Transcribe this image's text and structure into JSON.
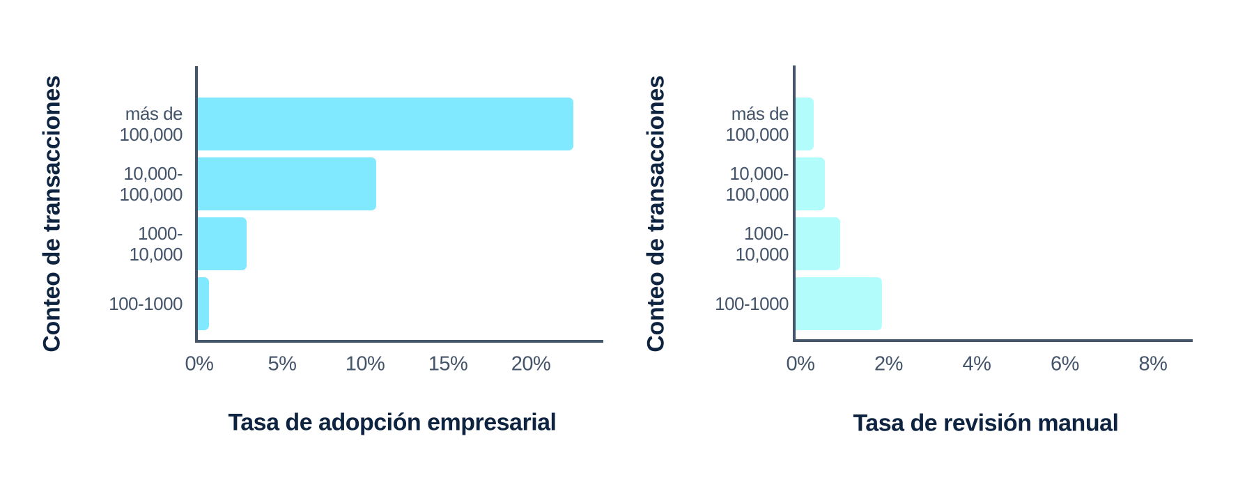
{
  "chart_data": [
    {
      "type": "bar",
      "orientation": "horizontal",
      "title": "",
      "xlabel": "Tasa de adopción empresarial",
      "ylabel": "Conteo de transacciones",
      "categories": [
        "más de 100,000",
        "10,000-100,000",
        "1000-10,000",
        "100-1000"
      ],
      "category_labels": [
        "más de\n100,000",
        "10,000-\n100,000",
        "1000-\n10,000",
        "100-1000"
      ],
      "values": [
        22.7,
        10.8,
        3.0,
        0.7
      ],
      "unit": "%",
      "xticks": [
        "0%",
        "5%",
        "10%",
        "15%",
        "20%"
      ],
      "xtick_values": [
        0,
        5,
        10,
        15,
        20
      ],
      "xlim": [
        0,
        24.5
      ],
      "grid": false,
      "legend": null,
      "bar_color": "#80e9ff"
    },
    {
      "type": "bar",
      "orientation": "horizontal",
      "title": "",
      "xlabel": "Tasa de revisión manual",
      "ylabel": "Conteo de transacciones",
      "categories": [
        "más de 100,000",
        "10,000-100,000",
        "1000-10,000",
        "100-1000"
      ],
      "category_labels": [
        "más de\n100,000",
        "10,000-\n100,000",
        "1000-\n10,000",
        "100-1000"
      ],
      "values": [
        0.35,
        0.6,
        0.95,
        1.9
      ],
      "unit": "%",
      "xticks": [
        "0%",
        "2%",
        "4%",
        "6%",
        "8%"
      ],
      "xtick_values": [
        0,
        2,
        4,
        6,
        8
      ],
      "xlim": [
        0,
        9
      ],
      "grid": false,
      "legend": null,
      "bar_color": "#b3fcfc"
    }
  ],
  "colors": {
    "axis": "#46566a",
    "tick_text": "#44546a",
    "title_text": "#0d2340"
  }
}
